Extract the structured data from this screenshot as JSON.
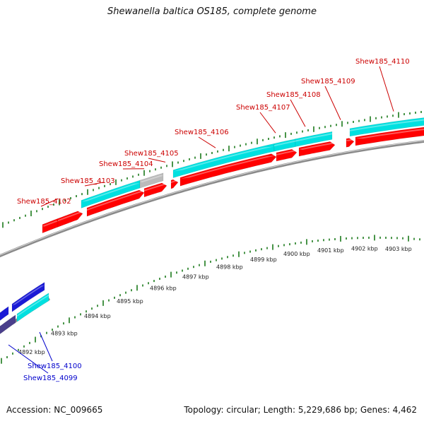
{
  "title": "Shewanella baltica OS185, complete genome",
  "footer": {
    "accession": "Accession: NC_009665",
    "summary": "Topology: circular; Length: 5,229,686 bp; Genes: 4,462"
  },
  "colors": {
    "forward_cds": "#ff0000",
    "forward_gene": "#00e0e0",
    "reverse_cds": "#1a1ad6",
    "reverse_gene_dark": "#4a3f8c",
    "pseudo_gene": "#bbbbbb",
    "backbone": "#8a8a8a",
    "tick": "#1a7a1a",
    "forward_label": "#cc0000",
    "reverse_label": "#0000cc"
  },
  "forward_genes": [
    "Shew185_4102",
    "Shew185_4103",
    "Shew185_4104",
    "Shew185_4105",
    "Shew185_4106",
    "Shew185_4107",
    "Shew185_4108",
    "Shew185_4109",
    "Shew185_4110"
  ],
  "reverse_genes": [
    "Shew185_4100",
    "Shew185_4099"
  ],
  "ruler_ticks": [
    "4892 kbp",
    "4893 kbp",
    "4894 kbp",
    "4895 kbp",
    "4896 kbp",
    "4897 kbp",
    "4898 kbp",
    "4899 kbp",
    "4900 kbp",
    "4901 kbp",
    "4902 kbp",
    "4903 kbp"
  ]
}
